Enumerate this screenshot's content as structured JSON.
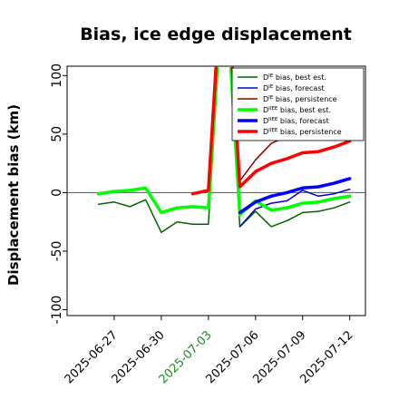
{
  "chart_data": {
    "type": "line",
    "title": "Bias, ice edge displacement",
    "xlabel": "",
    "ylabel": "Displacement bias (km)",
    "ylim": [
      -105,
      108
    ],
    "xlim": [
      "2025-06-24",
      "2025-07-13"
    ],
    "grid": false,
    "zero_line": true,
    "legend_position": "top-right",
    "xticks": [
      {
        "date": "2025-06-27",
        "label": "2025-06-27",
        "color": "#000000"
      },
      {
        "date": "2025-06-30",
        "label": "2025-06-30",
        "color": "#000000"
      },
      {
        "date": "2025-07-03",
        "label": "2025-07-03",
        "color": "#228b22"
      },
      {
        "date": "2025-07-06",
        "label": "2025-07-06",
        "color": "#000000"
      },
      {
        "date": "2025-07-09",
        "label": "2025-07-09",
        "color": "#000000"
      },
      {
        "date": "2025-07-12",
        "label": "2025-07-12",
        "color": "#000000"
      }
    ],
    "yticks": [
      {
        "value": 100,
        "label": "100"
      },
      {
        "value": 50,
        "label": "50"
      },
      {
        "value": 0,
        "label": "0"
      },
      {
        "value": -50,
        "label": "-50"
      },
      {
        "value": -100,
        "label": "-100"
      }
    ],
    "series": [
      {
        "name": "D$^{IE}$ bias, best est.",
        "legend_base": "D",
        "legend_sup": "IE",
        "legend_rest": " bias, best est.",
        "color": "#006400",
        "width": 1.5,
        "x": [
          "2025-06-26",
          "2025-06-27",
          "2025-06-28",
          "2025-06-29",
          "2025-06-30",
          "2025-07-01",
          "2025-07-02",
          "2025-07-03",
          "2025-07-04",
          "2025-07-05",
          "2025-07-06",
          "2025-07-07",
          "2025-07-08",
          "2025-07-09",
          "2025-07-10",
          "2025-07-11",
          "2025-07-12"
        ],
        "y": [
          -10,
          -8,
          -12,
          -6,
          -34,
          -25,
          -27,
          -27,
          190,
          -29,
          -16,
          -29,
          -24,
          -17,
          -16,
          -13,
          -8
        ]
      },
      {
        "name": "D$^{IE}$ bias, forecast",
        "legend_base": "D",
        "legend_sup": "IE",
        "legend_rest": " bias, forecast",
        "color": "#0000cd",
        "width": 1.5,
        "x": [
          "2025-07-05",
          "2025-07-06",
          "2025-07-07",
          "2025-07-08",
          "2025-07-09",
          "2025-07-10",
          "2025-07-11",
          "2025-07-12"
        ],
        "y": [
          -29,
          -14,
          -9,
          -7,
          2,
          -3,
          -1,
          3
        ]
      },
      {
        "name": "D$^{IE}$ bias, persistence",
        "legend_base": "D",
        "legend_sup": "IE",
        "legend_rest": " bias, persistence",
        "color": "#8b0000",
        "width": 1.5,
        "x": [
          "2025-07-05",
          "2025-07-06",
          "2025-07-07",
          "2025-07-08",
          "2025-07-09",
          "2025-07-10",
          "2025-07-11",
          "2025-07-12"
        ],
        "y": [
          10,
          28,
          42,
          48,
          52,
          56,
          58,
          62
        ]
      },
      {
        "name": "D$^{IIEE}$ bias, best est.",
        "legend_base": "D",
        "legend_sup": "IIEE",
        "legend_rest": " bias, best est.",
        "color": "#00ff00",
        "width": 3.5,
        "x": [
          "2025-06-26",
          "2025-06-27",
          "2025-06-28",
          "2025-06-29",
          "2025-06-30",
          "2025-07-01",
          "2025-07-02",
          "2025-07-03",
          "2025-07-04",
          "2025-07-05",
          "2025-07-06",
          "2025-07-07",
          "2025-07-08",
          "2025-07-09",
          "2025-07-10",
          "2025-07-11",
          "2025-07-12"
        ],
        "y": [
          -1,
          1,
          2,
          4,
          -17,
          -13,
          -12,
          -13,
          200,
          -19,
          -7,
          -15,
          -13,
          -9,
          -8,
          -5,
          -3
        ]
      },
      {
        "name": "D$^{IIEE}$ bias, forecast",
        "legend_base": "D",
        "legend_sup": "IIEE",
        "legend_rest": " bias, forecast",
        "color": "#0000ff",
        "width": 3.5,
        "x": [
          "2025-07-05",
          "2025-07-06",
          "2025-07-07",
          "2025-07-08",
          "2025-07-09",
          "2025-07-10",
          "2025-07-11",
          "2025-07-12"
        ],
        "y": [
          -17,
          -8,
          -3,
          0,
          4,
          5,
          8,
          12
        ]
      },
      {
        "name": "D$^{IIEE}$ bias, persistence",
        "legend_base": "D",
        "legend_sup": "IIEE",
        "legend_rest": " bias, persistence",
        "color": "#ff0000",
        "width": 3.5,
        "x": [
          "2025-07-02",
          "2025-07-03",
          "2025-07-04",
          "2025-07-05",
          "2025-07-06",
          "2025-07-07",
          "2025-07-08",
          "2025-07-09",
          "2025-07-10",
          "2025-07-11",
          "2025-07-12"
        ],
        "y": [
          -1,
          2,
          220,
          5,
          18,
          25,
          29,
          34,
          35,
          39,
          44
        ]
      }
    ]
  }
}
